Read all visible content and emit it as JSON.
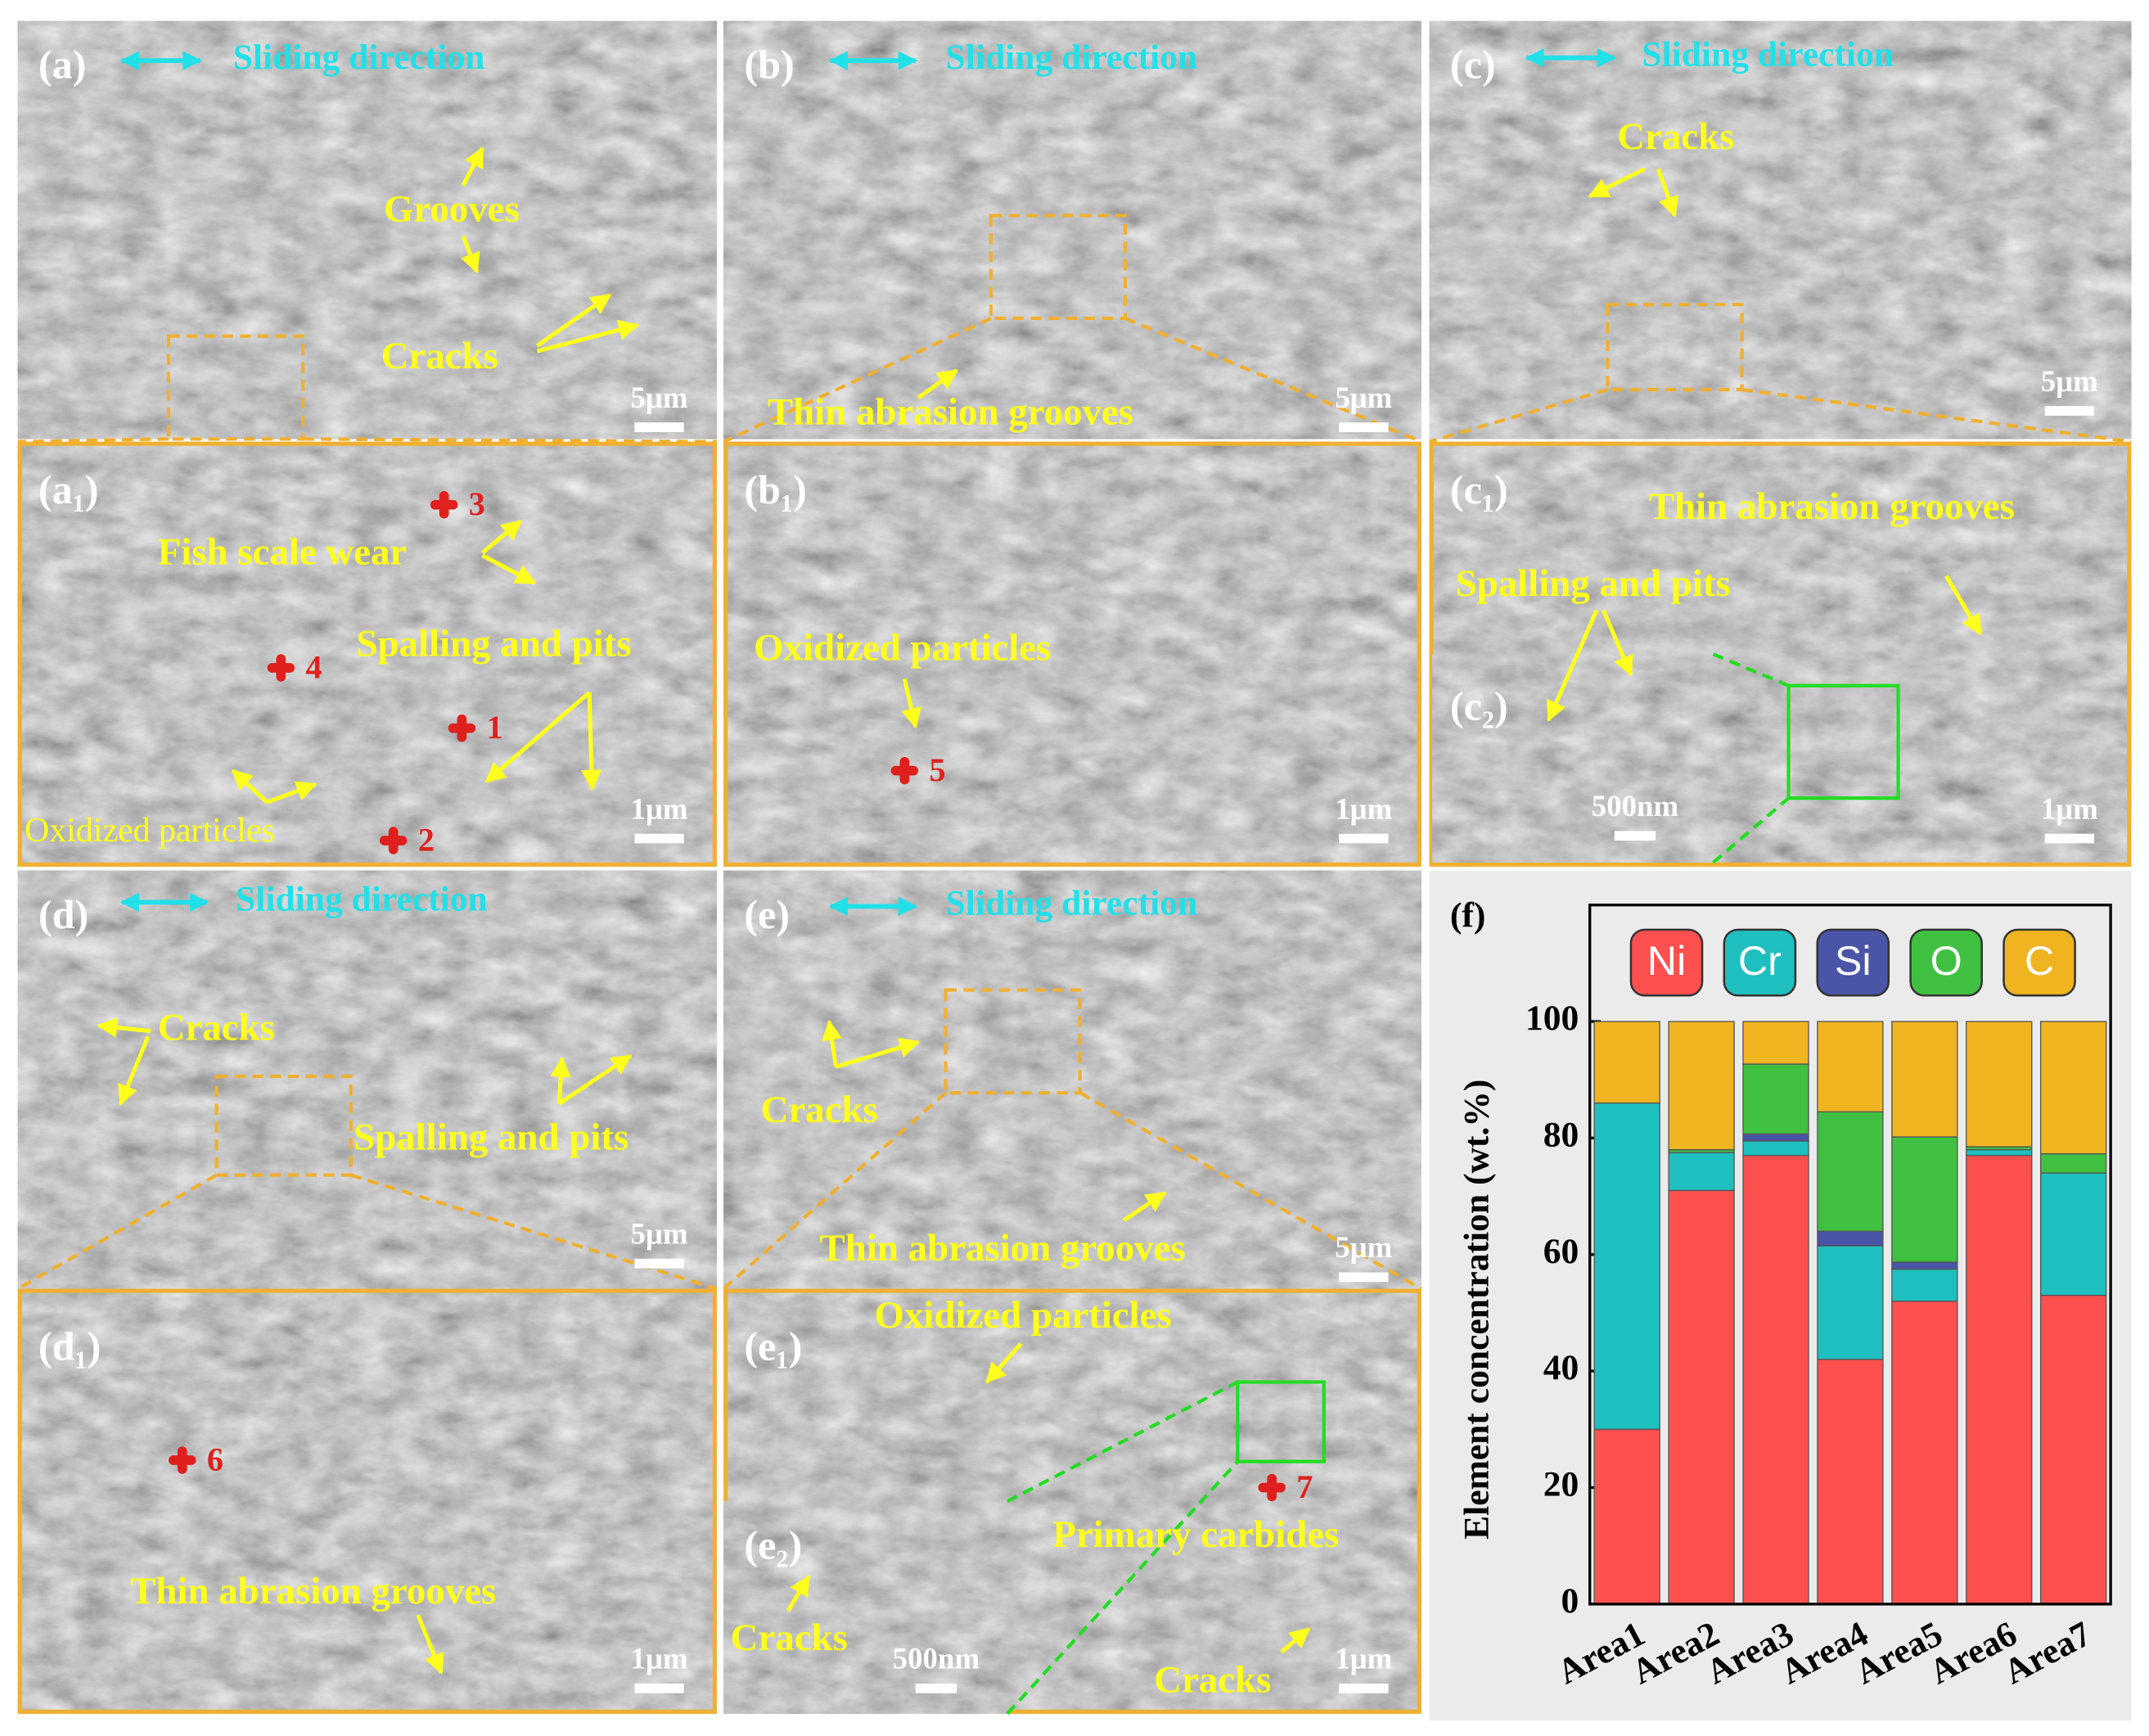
{
  "panels": [
    {
      "label": "(a)",
      "direction": "Sliding direction",
      "annotations": [
        "Grooves",
        "Cracks"
      ],
      "scale": "5μm"
    },
    {
      "label": "(b)",
      "direction": "Sliding direction",
      "annotations": [
        "Thin abrasion grooves"
      ],
      "scale": "5μm"
    },
    {
      "label": "(c)",
      "direction": "Sliding direction",
      "annotations": [
        "Cracks"
      ],
      "scale": "5μm"
    },
    {
      "label": "(a₁)",
      "annotations": [
        "Fish scale wear",
        "Spalling and pits",
        "Oxidized particles"
      ],
      "markers": [
        "3",
        "4",
        "1",
        "2"
      ],
      "scale": "1μm"
    },
    {
      "label": "(b₁)",
      "annotations": [
        "Oxidized particles"
      ],
      "markers": [
        "5"
      ],
      "scale": "1μm"
    },
    {
      "label": "(c₁)",
      "annotations": [
        "Thin abrasion grooves",
        "Spalling and pits"
      ],
      "scale": "1μm",
      "inset": {
        "label": "(c₂)",
        "scale": "500nm"
      }
    },
    {
      "label": "(d)",
      "direction": "Sliding direction",
      "annotations": [
        "Cracks",
        "Spalling and pits"
      ],
      "scale": "5μm"
    },
    {
      "label": "(e)",
      "direction": "Sliding direction",
      "annotations": [
        "Cracks",
        "Thin abrasion grooves"
      ],
      "scale": "5μm"
    },
    {
      "label": "(d₁)",
      "annotations": [
        "Thin abrasion grooves"
      ],
      "markers": [
        "6"
      ],
      "scale": "1μm"
    },
    {
      "label": "(e₁)",
      "annotations": [
        "Oxidized particles",
        "Primary carbides",
        "Cracks"
      ],
      "markers": [
        "7"
      ],
      "scale": "1μm",
      "inset": {
        "label": "(e₂)",
        "annotations": [
          "Cracks"
        ],
        "scale": "500nm"
      }
    }
  ],
  "chart_data": {
    "type": "stacked_bar",
    "title": "(f)",
    "y_label": "Element concentration (wt.%)",
    "categories": [
      "Area1",
      "Area2",
      "Area3",
      "Area4",
      "Area5",
      "Area6",
      "Area7"
    ],
    "series": [
      {
        "name": "Ni",
        "color": "#ff5050",
        "values": [
          30,
          71,
          77,
          42,
          52,
          77,
          53
        ]
      },
      {
        "name": "Cr",
        "color": "#1fbfbf",
        "values": [
          56,
          6.5,
          2.5,
          19.5,
          5.5,
          1,
          21
        ]
      },
      {
        "name": "Si",
        "color": "#4a55a8",
        "values": [
          0,
          0,
          1.2,
          2.5,
          1.2,
          0,
          0
        ]
      },
      {
        "name": "O",
        "color": "#40c040",
        "values": [
          0,
          0.5,
          12,
          20.5,
          21.5,
          0.5,
          3.3
        ]
      },
      {
        "name": "C",
        "color": "#f0b420",
        "values": [
          14,
          22,
          7.3,
          15.5,
          19.8,
          21.5,
          22.7
        ]
      }
    ],
    "ylim": [
      0,
      120
    ],
    "yticks": [
      0,
      20,
      40,
      60,
      80,
      100
    ]
  }
}
